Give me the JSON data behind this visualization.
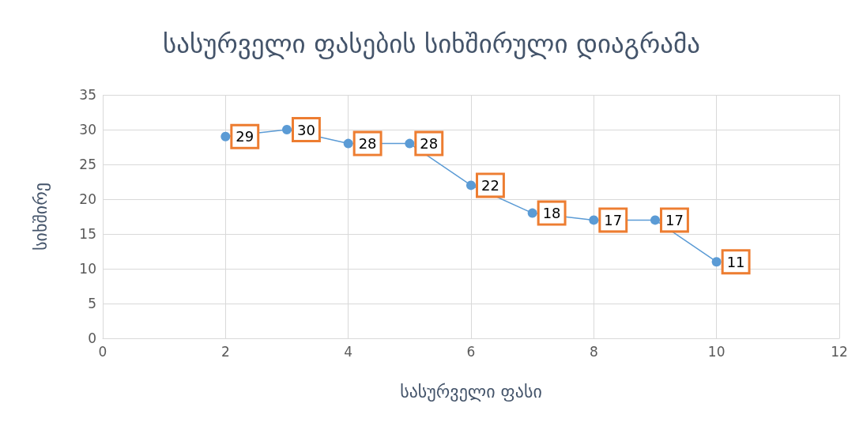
{
  "chart_data": {
    "type": "line",
    "title": "სასურველი ფასების სიხშირული დიაგრამა",
    "xlabel": "სასურველი ფასი",
    "ylabel": "სიხშირე",
    "x": [
      2,
      3,
      4,
      5,
      6,
      7,
      8,
      9,
      10
    ],
    "series": [
      {
        "color": "#5b9bd5",
        "values": [
          29,
          30,
          28,
          28,
          22,
          18,
          17,
          17,
          11
        ]
      }
    ],
    "xlim": [
      0,
      12
    ],
    "xticks": [
      0,
      2,
      4,
      6,
      8,
      10,
      12
    ],
    "ylim": [
      0,
      35
    ],
    "yticks": [
      0,
      5,
      10,
      15,
      20,
      25,
      30,
      35
    ],
    "grid": true,
    "marker": "circle",
    "line_style": "solid",
    "data_labels": true
  }
}
